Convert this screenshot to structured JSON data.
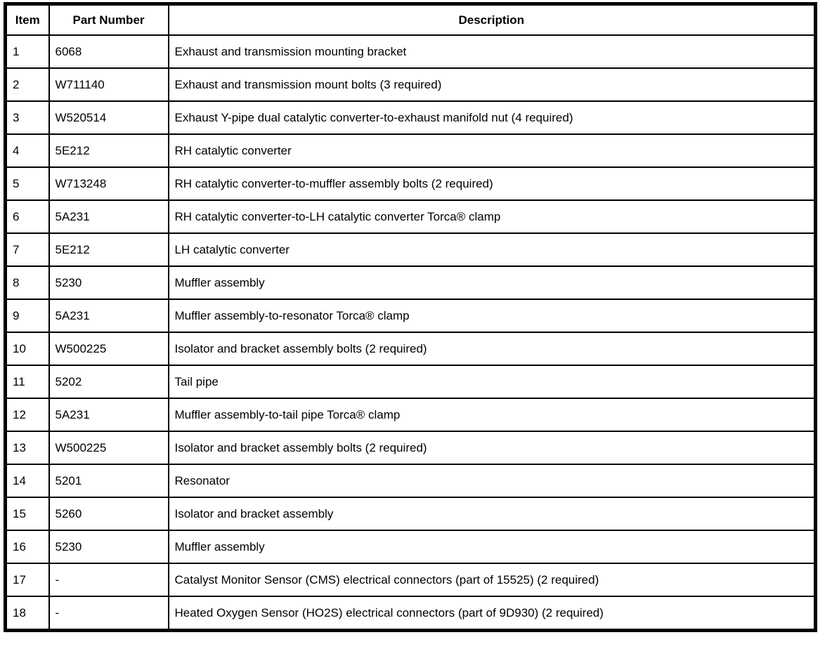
{
  "table": {
    "headers": [
      "Item",
      "Part Number",
      "Description"
    ],
    "rows": [
      [
        "1",
        "6068",
        "Exhaust and transmission mounting bracket"
      ],
      [
        "2",
        "W711140",
        "Exhaust and transmission mount bolts (3 required)"
      ],
      [
        "3",
        "W520514",
        "Exhaust Y-pipe dual catalytic converter-to-exhaust manifold nut (4 required)"
      ],
      [
        "4",
        "5E212",
        "RH catalytic converter"
      ],
      [
        "5",
        "W713248",
        "RH catalytic converter-to-muffler assembly bolts (2 required)"
      ],
      [
        "6",
        "5A231",
        "RH catalytic converter-to-LH catalytic converter Torca® clamp"
      ],
      [
        "7",
        "5E212",
        "LH catalytic converter"
      ],
      [
        "8",
        "5230",
        "Muffler assembly"
      ],
      [
        "9",
        "5A231",
        "Muffler assembly-to-resonator Torca® clamp"
      ],
      [
        "10",
        "W500225",
        "Isolator and bracket assembly bolts (2 required)"
      ],
      [
        "11",
        "5202",
        "Tail pipe"
      ],
      [
        "12",
        "5A231",
        "Muffler assembly-to-tail pipe Torca® clamp"
      ],
      [
        "13",
        "W500225",
        "Isolator and bracket assembly bolts (2 required)"
      ],
      [
        "14",
        "5201",
        "Resonator"
      ],
      [
        "15",
        "5260",
        "Isolator and bracket assembly"
      ],
      [
        "16",
        "5230",
        "Muffler assembly"
      ],
      [
        "17",
        "-",
        "Catalyst Monitor Sensor (CMS) electrical connectors (part of 15525) (2 required)"
      ],
      [
        "18",
        "-",
        "Heated Oxygen Sensor (HO2S) electrical connectors (part of 9D930) (2 required)"
      ]
    ]
  }
}
